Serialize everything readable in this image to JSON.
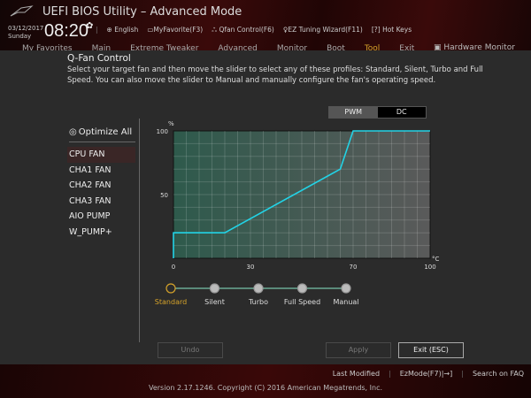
{
  "header": {
    "title": "UEFI BIOS Utility – Advanced Mode",
    "date": "03/12/2017",
    "day": "Sunday",
    "time": "08:20",
    "tools": [
      {
        "icon": "globe-icon",
        "label": "English"
      },
      {
        "icon": "favorite-icon",
        "label": "MyFavorite(F3)"
      },
      {
        "icon": "fan-icon",
        "label": "Qfan Control(F6)"
      },
      {
        "icon": "bulb-icon",
        "label": "EZ Tuning Wizard(F11)"
      },
      {
        "icon": "help-icon",
        "label": "Hot Keys"
      }
    ]
  },
  "nav": {
    "tabs": [
      "My Favorites",
      "Main",
      "Extreme Tweaker",
      "Advanced",
      "Monitor",
      "Boot",
      "Tool",
      "Exit"
    ],
    "active": "Tool",
    "hardware_monitor": "Hardware Monitor"
  },
  "qfan": {
    "title": "Q-Fan Control",
    "description": "Select your target fan and then move the slider to select any of these profiles: Standard, Silent, Turbo and Full Speed. You can also move the slider to Manual and manually configure the fan's operating speed.",
    "optimize_all": "Optimize All",
    "fans": [
      "CPU FAN",
      "CHA1 FAN",
      "CHA2 FAN",
      "CHA3 FAN",
      "AIO PUMP",
      "W_PUMP+"
    ],
    "selected_fan": "CPU FAN",
    "mode": {
      "pwm": "PWM",
      "dc": "DC",
      "selected": "PWM"
    },
    "profiles": [
      "Standard",
      "Silent",
      "Turbo",
      "Full Speed",
      "Manual"
    ],
    "selected_profile": "Standard",
    "buttons": {
      "undo": "Undo",
      "apply": "Apply",
      "exit": "Exit (ESC)"
    }
  },
  "chart_data": {
    "type": "line",
    "xlabel": "°C",
    "ylabel": "%",
    "xlim": [
      0,
      100
    ],
    "ylim": [
      0,
      100
    ],
    "x_ticks": [
      "0",
      "30",
      "70",
      "100"
    ],
    "y_ticks": [
      "50",
      "100"
    ],
    "grid": true,
    "line_color": "#22d3e6",
    "x": [
      0,
      0,
      20,
      65,
      70,
      100
    ],
    "y": [
      0,
      20,
      20,
      70,
      100,
      100
    ]
  },
  "footer": {
    "last_modified": "Last Modified",
    "ezmode": "EzMode(F7)|→]",
    "faq": "Search on FAQ",
    "version": "Version 2.17.1246. Copyright (C) 2016 American Megatrends, Inc."
  }
}
